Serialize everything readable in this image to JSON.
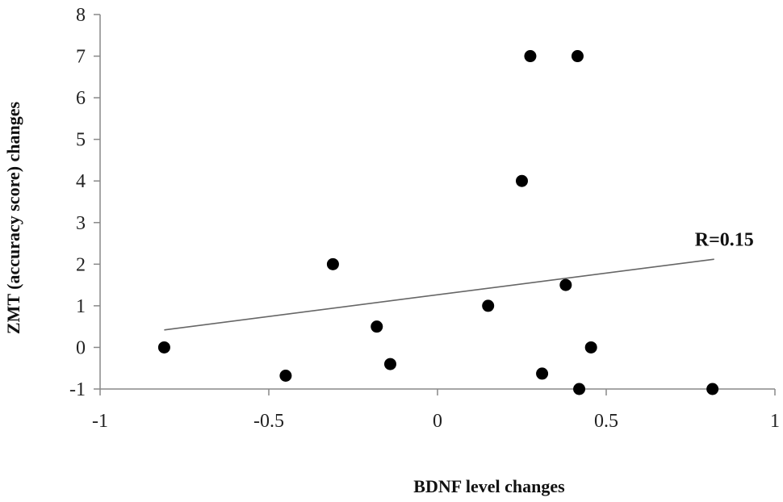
{
  "chart_data": {
    "type": "scatter",
    "xlabel": "BDNF  level changes",
    "ylabel": "ZMT (accuracy score) changes",
    "xlim": [
      -1,
      1
    ],
    "ylim": [
      -1,
      8
    ],
    "x_ticks": [
      -1,
      -0.5,
      0,
      0.5,
      1
    ],
    "x_tick_labels": [
      "-1",
      "-0.5",
      "0",
      "0.5",
      "1"
    ],
    "y_ticks": [
      -1,
      0,
      1,
      2,
      3,
      4,
      5,
      6,
      7,
      8
    ],
    "y_tick_labels": [
      "-1",
      "0",
      "1",
      "2",
      "3",
      "4",
      "5",
      "6",
      "7",
      "8"
    ],
    "grid": false,
    "legend": "none",
    "points": [
      {
        "x": -0.81,
        "y": 0
      },
      {
        "x": -0.45,
        "y": -0.68
      },
      {
        "x": -0.31,
        "y": 2
      },
      {
        "x": -0.18,
        "y": 0.5
      },
      {
        "x": -0.14,
        "y": -0.4
      },
      {
        "x": 0.15,
        "y": 1
      },
      {
        "x": 0.25,
        "y": 4
      },
      {
        "x": 0.275,
        "y": 7
      },
      {
        "x": 0.31,
        "y": -0.63
      },
      {
        "x": 0.38,
        "y": 1.5
      },
      {
        "x": 0.415,
        "y": 7
      },
      {
        "x": 0.42,
        "y": -1
      },
      {
        "x": 0.455,
        "y": 0
      },
      {
        "x": 0.815,
        "y": -1
      }
    ],
    "trendline": {
      "x": [
        -0.81,
        0.82
      ],
      "y": [
        0.42,
        2.12
      ]
    },
    "annotation": {
      "text": "R=0.15",
      "x": 0.85,
      "y": 2.6
    },
    "colors": {
      "points": "#000000",
      "trendline": "#666666",
      "axis": "#888888"
    }
  }
}
